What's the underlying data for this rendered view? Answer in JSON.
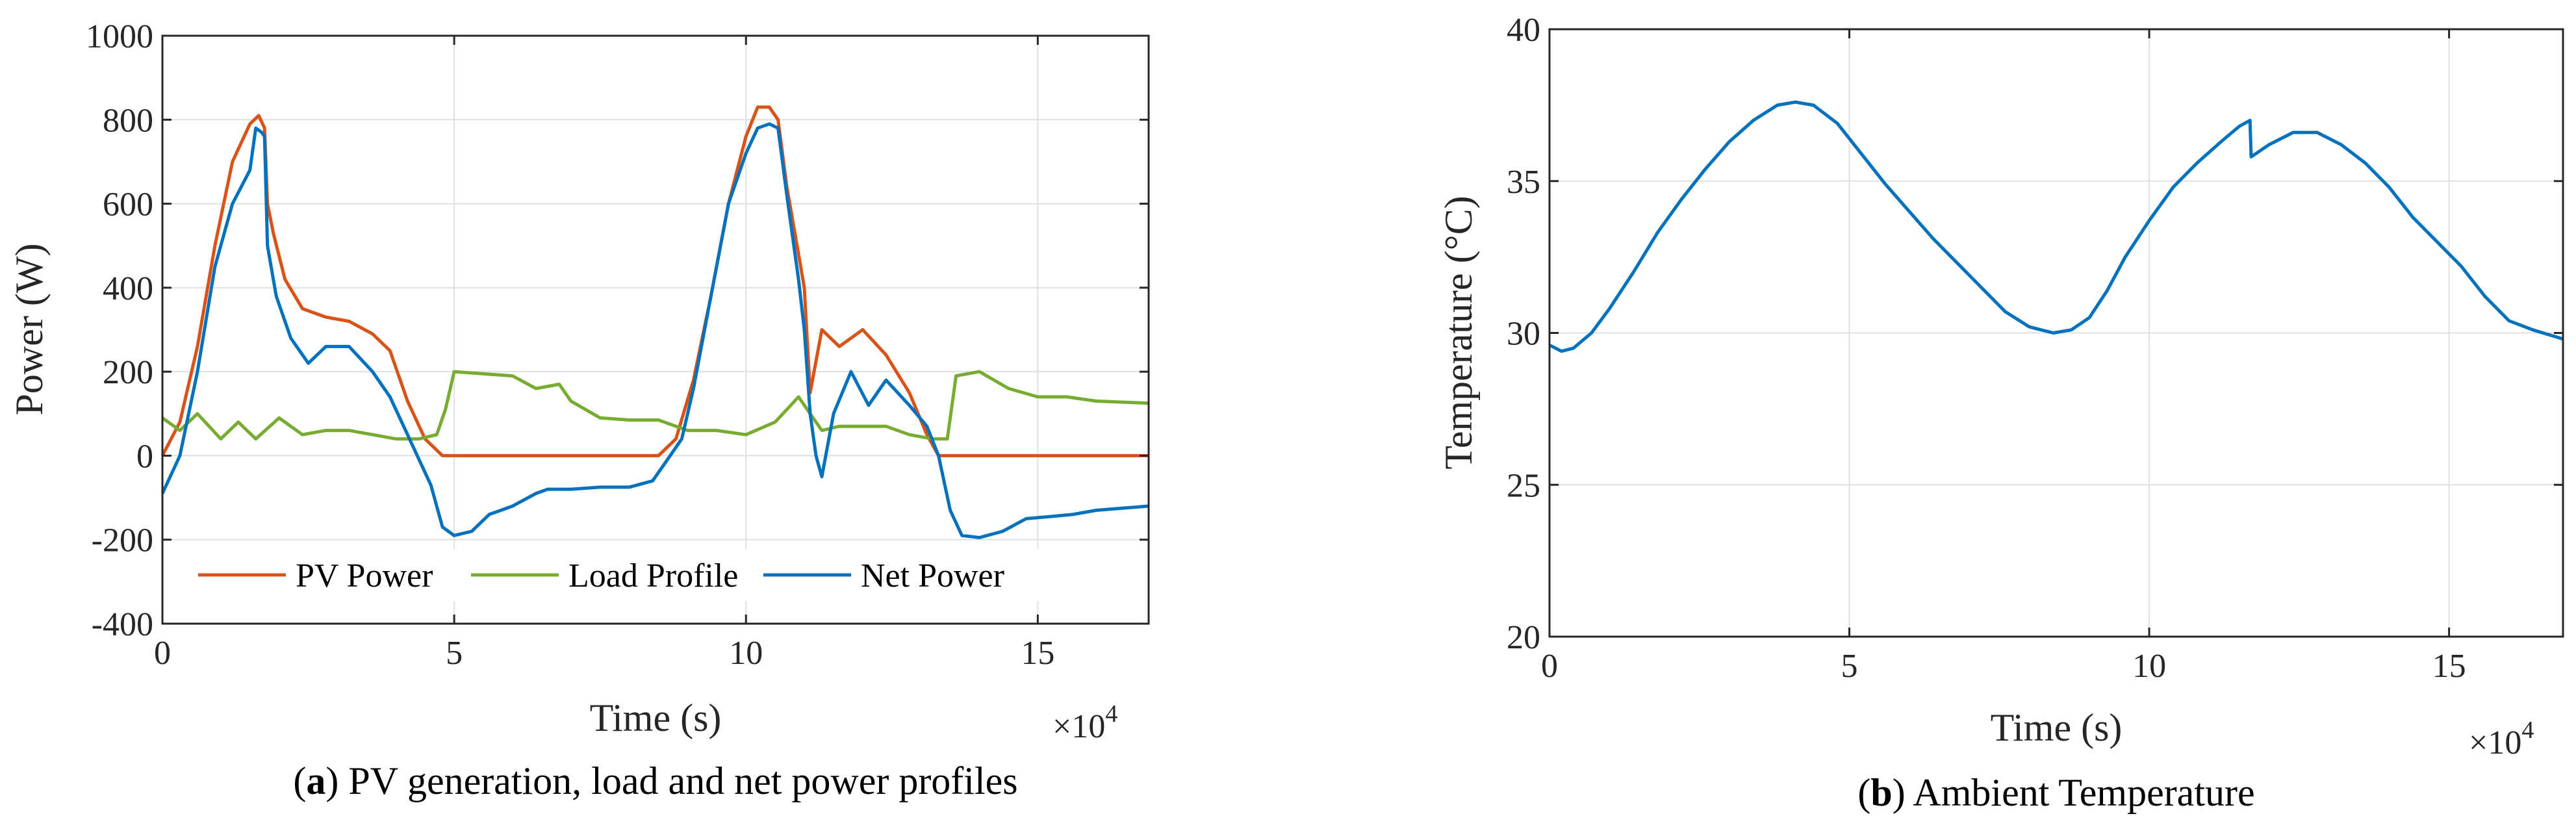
{
  "chart_data": [
    {
      "type": "line",
      "panel": "a",
      "caption_letter": "a",
      "caption": "PV generation, load and net power profiles",
      "title": "",
      "xlabel": "Time (s)",
      "ylabel": "Power (W)",
      "x_exponent_label": "×10",
      "x_exponent": "4",
      "xlim": [
        0,
        16.9
      ],
      "ylim": [
        -400,
        1000
      ],
      "xticks": [
        0,
        5,
        10,
        15
      ],
      "xtick_labels": [
        "0",
        "5",
        "10",
        "15"
      ],
      "yticks": [
        -400,
        -200,
        0,
        200,
        400,
        600,
        800,
        1000
      ],
      "ytick_labels": [
        "-400",
        "-200",
        "0",
        "200",
        "400",
        "600",
        "800",
        "1000"
      ],
      "grid": true,
      "legend_position": "bottom",
      "series": [
        {
          "name": "PV Power",
          "color": "#D95319",
          "x": [
            0,
            0.3,
            0.6,
            0.9,
            1.2,
            1.5,
            1.65,
            1.75,
            1.8,
            1.9,
            2.1,
            2.4,
            2.8,
            3.2,
            3.6,
            3.9,
            4.2,
            4.5,
            4.8,
            5.0,
            6.0,
            7.0,
            8.0,
            8.5,
            8.8,
            9.1,
            9.4,
            9.7,
            10.0,
            10.2,
            10.4,
            10.55,
            10.7,
            10.9,
            11.0,
            11.1,
            11.3,
            11.6,
            12.0,
            12.4,
            12.8,
            13.1,
            13.3,
            13.5,
            14.0,
            15.0,
            16.0,
            16.9
          ],
          "y": [
            0,
            80,
            260,
            500,
            700,
            790,
            810,
            780,
            600,
            530,
            420,
            350,
            330,
            320,
            290,
            250,
            130,
            40,
            0,
            0,
            0,
            0,
            0,
            0,
            40,
            180,
            380,
            600,
            760,
            830,
            830,
            800,
            640,
            480,
            400,
            150,
            300,
            260,
            300,
            240,
            150,
            50,
            0,
            0,
            0,
            0,
            0,
            0
          ]
        },
        {
          "name": "Load Profile",
          "color": "#77AC30",
          "x": [
            0,
            0.3,
            0.6,
            1.0,
            1.3,
            1.6,
            2.0,
            2.4,
            2.8,
            3.2,
            3.6,
            4.0,
            4.4,
            4.7,
            4.85,
            5.0,
            6.0,
            6.4,
            6.8,
            7.0,
            7.5,
            8.0,
            8.5,
            9.0,
            9.5,
            10.0,
            10.5,
            10.9,
            11.1,
            11.3,
            11.6,
            12.0,
            12.4,
            12.8,
            13.2,
            13.45,
            13.6,
            14.0,
            14.5,
            15.0,
            15.5,
            16.0,
            16.9
          ],
          "y": [
            90,
            60,
            100,
            40,
            80,
            40,
            90,
            50,
            60,
            60,
            50,
            40,
            40,
            50,
            110,
            200,
            190,
            160,
            170,
            130,
            90,
            85,
            85,
            60,
            60,
            50,
            80,
            140,
            100,
            60,
            70,
            70,
            70,
            50,
            40,
            40,
            190,
            200,
            160,
            140,
            140,
            130,
            125
          ]
        },
        {
          "name": "Net Power",
          "color": "#0072BD",
          "x": [
            0,
            0.3,
            0.6,
            0.9,
            1.2,
            1.5,
            1.6,
            1.7,
            1.75,
            1.8,
            1.95,
            2.2,
            2.5,
            2.8,
            3.2,
            3.6,
            3.9,
            4.2,
            4.6,
            4.8,
            5.0,
            5.3,
            5.6,
            6.0,
            6.4,
            6.6,
            7.0,
            7.5,
            8.0,
            8.4,
            8.6,
            8.9,
            9.1,
            9.4,
            9.7,
            10.0,
            10.2,
            10.4,
            10.55,
            10.7,
            10.9,
            11.0,
            11.1,
            11.2,
            11.3,
            11.5,
            11.8,
            12.1,
            12.4,
            12.8,
            13.1,
            13.3,
            13.5,
            13.7,
            14.0,
            14.4,
            14.8,
            15.2,
            15.6,
            16.0,
            16.9
          ],
          "y": [
            -90,
            0,
            200,
            450,
            600,
            680,
            780,
            770,
            760,
            500,
            380,
            280,
            220,
            260,
            260,
            200,
            140,
            50,
            -70,
            -170,
            -190,
            -180,
            -140,
            -120,
            -90,
            -80,
            -80,
            -75,
            -75,
            -60,
            -20,
            40,
            160,
            380,
            600,
            720,
            780,
            790,
            780,
            620,
            420,
            300,
            100,
            0,
            -50,
            100,
            200,
            120,
            180,
            120,
            70,
            0,
            -130,
            -190,
            -195,
            -180,
            -150,
            -145,
            -140,
            -130,
            -120
          ]
        }
      ]
    },
    {
      "type": "line",
      "panel": "b",
      "caption_letter": "b",
      "caption": "Ambient Temperature",
      "title": "",
      "xlabel": "Time (s)",
      "ylabel": "Temperature (°C)",
      "x_exponent_label": "×10",
      "x_exponent": "4",
      "xlim": [
        0,
        16.9
      ],
      "ylim": [
        20,
        40
      ],
      "xticks": [
        0,
        5,
        10,
        15
      ],
      "xtick_labels": [
        "0",
        "5",
        "10",
        "15"
      ],
      "yticks": [
        20,
        25,
        30,
        35,
        40
      ],
      "ytick_labels": [
        "20",
        "25",
        "30",
        "35",
        "40"
      ],
      "grid": true,
      "series": [
        {
          "name": "Ambient Temperature",
          "color": "#0072BD",
          "x": [
            0,
            0.2,
            0.4,
            0.7,
            1.0,
            1.4,
            1.8,
            2.2,
            2.6,
            3.0,
            3.4,
            3.8,
            4.1,
            4.4,
            4.8,
            5.2,
            5.6,
            6.0,
            6.4,
            6.8,
            7.2,
            7.6,
            8.0,
            8.4,
            8.7,
            9.0,
            9.3,
            9.6,
            10.0,
            10.4,
            10.8,
            11.2,
            11.5,
            11.68,
            11.7,
            12.0,
            12.4,
            12.8,
            13.2,
            13.6,
            14.0,
            14.4,
            14.8,
            15.2,
            15.6,
            16.0,
            16.4,
            16.9
          ],
          "y": [
            29.6,
            29.4,
            29.5,
            30.0,
            30.8,
            32.0,
            33.3,
            34.4,
            35.4,
            36.3,
            37.0,
            37.5,
            37.6,
            37.5,
            36.9,
            35.9,
            34.9,
            34.0,
            33.1,
            32.3,
            31.5,
            30.7,
            30.2,
            30.0,
            30.1,
            30.5,
            31.4,
            32.5,
            33.7,
            34.8,
            35.6,
            36.3,
            36.8,
            37.0,
            35.8,
            36.2,
            36.6,
            36.6,
            36.2,
            35.6,
            34.8,
            33.8,
            33.0,
            32.2,
            31.2,
            30.4,
            30.1,
            29.8
          ]
        }
      ]
    }
  ]
}
